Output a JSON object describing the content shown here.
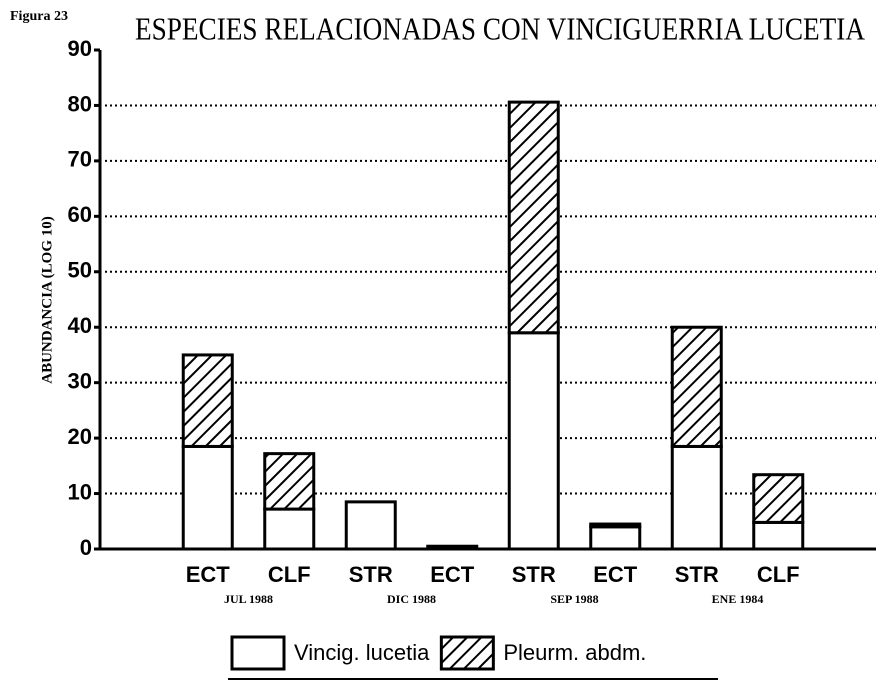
{
  "chart_data": {
    "type": "stacked_bar",
    "figure_label": "Figura 23",
    "title": "ESPECIES RELACIONADAS CON VINCIGUERRIA LUCETIA",
    "y_label": "ABUNDANCIA (LOG 10)",
    "categories": [
      "ECT",
      "CLF",
      "STR",
      "ECT",
      "STR",
      "ECT",
      "STR",
      "CLF"
    ],
    "groups": [
      "JUL 1988",
      "DIC 1988",
      "SEP 1988",
      "ENE 1984"
    ],
    "series": [
      {
        "name": "Vincig. lucetia",
        "color": "#ffffff",
        "hatch": false,
        "values": [
          18.5,
          7.2,
          8.5,
          0.5,
          39,
          4,
          18.5,
          4.8
        ]
      },
      {
        "name": "Pleurm. abdm.",
        "color": "#ffffff",
        "hatch": true,
        "values": [
          16.5,
          10,
          0,
          0,
          41.6,
          0.5,
          21.5,
          8.6
        ]
      }
    ],
    "ylim": [
      0,
      90
    ],
    "yticks": [
      0,
      10,
      20,
      30,
      40,
      50,
      60,
      70,
      80,
      90
    ],
    "grid": true
  }
}
